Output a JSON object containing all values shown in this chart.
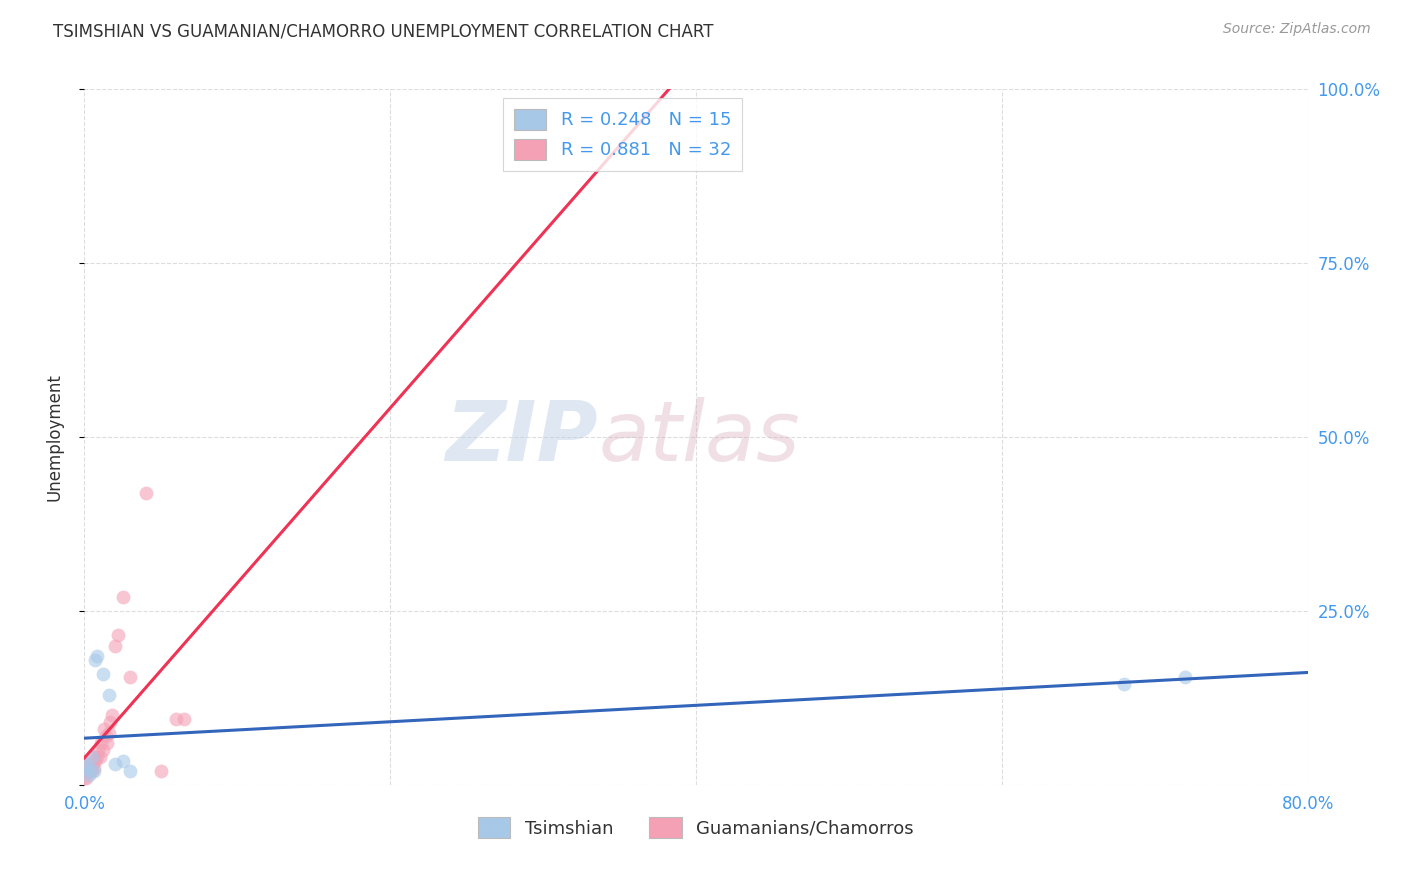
{
  "title": "TSIMSHIAN VS GUAMANIAN/CHAMORRO UNEMPLOYMENT CORRELATION CHART",
  "source": "Source: ZipAtlas.com",
  "ylabel": "Unemployment",
  "watermark_zip": "ZIP",
  "watermark_atlas": "atlas",
  "xlim": [
    0.0,
    0.8
  ],
  "ylim": [
    0.0,
    1.0
  ],
  "xticks": [
    0.0,
    0.2,
    0.4,
    0.6,
    0.8
  ],
  "xtick_labels": [
    "0.0%",
    "",
    "",
    "",
    "80.0%"
  ],
  "yticks": [
    0.0,
    0.25,
    0.5,
    0.75,
    1.0
  ],
  "ytick_labels_right": [
    "",
    "25.0%",
    "50.0%",
    "75.0%",
    "100.0%"
  ],
  "tsimshian_color": "#a8c8e8",
  "guamanian_color": "#f4a0b5",
  "tsimshian_edge_color": "#6699cc",
  "guamanian_edge_color": "#e07090",
  "tsimshian_line_color": "#3366bb",
  "guamanian_line_color": "#ee3355",
  "R_tsimshian": 0.248,
  "N_tsimshian": 15,
  "R_guamanian": 0.881,
  "N_guamanian": 32,
  "legend_label_tsimshian": "Tsimshian",
  "legend_label_guamanian": "Guamanians/Chamorros",
  "tsimshian_x": [
    0.001,
    0.002,
    0.003,
    0.004,
    0.005,
    0.006,
    0.007,
    0.008,
    0.012,
    0.016,
    0.02,
    0.025,
    0.03,
    0.68,
    0.72
  ],
  "tsimshian_y": [
    0.025,
    0.03,
    0.015,
    0.02,
    0.04,
    0.02,
    0.18,
    0.185,
    0.16,
    0.13,
    0.03,
    0.035,
    0.02,
    0.145,
    0.155
  ],
  "guamanian_x": [
    0.0,
    0.001,
    0.001,
    0.002,
    0.002,
    0.003,
    0.003,
    0.004,
    0.005,
    0.005,
    0.006,
    0.006,
    0.007,
    0.008,
    0.009,
    0.01,
    0.011,
    0.012,
    0.013,
    0.014,
    0.015,
    0.016,
    0.017,
    0.018,
    0.02,
    0.022,
    0.025,
    0.03,
    0.04,
    0.05,
    0.06,
    0.065
  ],
  "guamanian_y": [
    0.01,
    0.01,
    0.02,
    0.02,
    0.03,
    0.02,
    0.03,
    0.025,
    0.02,
    0.03,
    0.025,
    0.04,
    0.035,
    0.04,
    0.05,
    0.04,
    0.06,
    0.05,
    0.08,
    0.07,
    0.06,
    0.075,
    0.09,
    0.1,
    0.2,
    0.215,
    0.27,
    0.155,
    0.42,
    0.02,
    0.095,
    0.095
  ],
  "background_color": "#ffffff",
  "grid_color": "#dddddd",
  "title_color": "#333333",
  "axis_label_color": "#4499ee",
  "source_color": "#999999",
  "marker_size": 100,
  "marker_alpha": 0.6
}
